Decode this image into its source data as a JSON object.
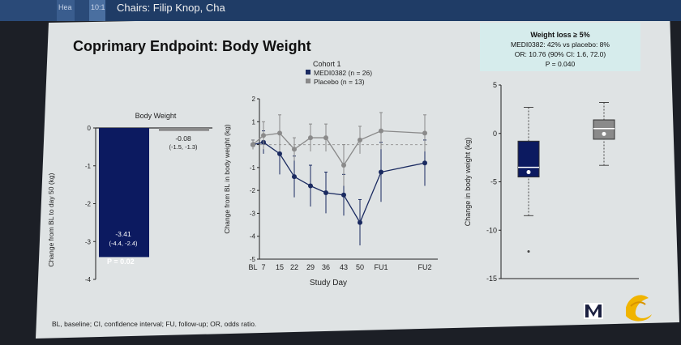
{
  "header": {
    "chairs_text": "Chairs: Filip Knop, Cha",
    "tab_a": "Hea",
    "tab_b": "10:1"
  },
  "slide": {
    "title": "Coprimary Endpoint: Body Weight",
    "footnote": "BL, baseline; CI, confidence interval; FU, follow-up; OR, odds ratio."
  },
  "colors": {
    "medi": "#0c1a60",
    "placebo": "#8a8a8a",
    "annotation_box": "#d6ecec"
  },
  "logos": [
    "medimmune-logo",
    "astrazeneca-logo"
  ],
  "chart_data": [
    {
      "type": "bar",
      "title": "Body Weight",
      "ylabel": "Change from BL to day 50 (kg)",
      "ylim": [
        -4,
        0
      ],
      "yticks": [
        "0",
        "-1",
        "-2",
        "-3",
        "-4"
      ],
      "bars": [
        {
          "value": -3.41,
          "label": "-3.41",
          "ci": "(-4.4, -2.4)",
          "pvalue": "P = 0.02",
          "color": "#0c1a60"
        },
        {
          "value": -0.08,
          "label": "-0.08",
          "ci": "(-1.5, -1.3)",
          "color": "#8a8a8a"
        }
      ]
    },
    {
      "type": "line",
      "legend_title": "Cohort 1",
      "legend": [
        "MEDI0382 (n = 26)",
        "Placebo (n = 13)"
      ],
      "xlabel": "Study Day",
      "ylabel": "Change from BL in body weight (kg)",
      "ylim": [
        -5,
        2
      ],
      "yticks": [
        "2",
        "1",
        "0",
        "-1",
        "-2",
        "-3",
        "-4",
        "-5"
      ],
      "x_ticks": [
        "BL",
        "7",
        "15",
        "22",
        "29",
        "36",
        "43",
        "50",
        "FU1",
        "FU2"
      ],
      "series": [
        {
          "name": "MEDI0382 (n = 26)",
          "color": "#1a2a60",
          "x": [
            "BL",
            "7",
            "15",
            "22",
            "29",
            "36",
            "43",
            "50",
            "FU1",
            "FU2"
          ],
          "y": [
            0,
            0.1,
            -0.4,
            -1.4,
            -1.8,
            -2.1,
            -2.2,
            -3.4,
            -1.2,
            -0.8
          ],
          "err": [
            0.2,
            0.5,
            0.9,
            0.9,
            0.9,
            0.9,
            0.9,
            1.0,
            1.3,
            1.0
          ]
        },
        {
          "name": "Placebo (n = 13)",
          "color": "#8a8a8a",
          "x": [
            "BL",
            "7",
            "15",
            "22",
            "29",
            "36",
            "43",
            "50",
            "FU1",
            "FU2"
          ],
          "y": [
            0,
            0.4,
            0.5,
            -0.2,
            0.3,
            0.3,
            -0.9,
            0.2,
            0.6,
            0.5
          ],
          "err": [
            0.2,
            0.6,
            0.8,
            0.5,
            0.6,
            0.6,
            0.9,
            0.6,
            0.8,
            0.8
          ]
        }
      ]
    },
    {
      "type": "box",
      "ylabel": "Change in body weight (kg)",
      "ylim": [
        -15,
        5
      ],
      "yticks": [
        "5",
        "0",
        "-5",
        "-10",
        "-15"
      ],
      "annotation": {
        "line1": "Weight loss ≥ 5%",
        "line2": "MEDI0382: 42% vs placebo: 8%",
        "line3": "OR: 10.76 (90% CI: 1.6, 72.0)",
        "line4": "P = 0.040"
      },
      "boxes": [
        {
          "name": "MEDI0382",
          "color": "#0c1a60",
          "whisker_low": -8.5,
          "q1": -4.5,
          "median": -3.5,
          "q3": -0.8,
          "whisker_high": 2.7,
          "outliers": [
            -12.2
          ]
        },
        {
          "name": "Placebo",
          "color": "#8a8a8a",
          "whisker_low": -3.3,
          "q1": -0.6,
          "median": 0.5,
          "q3": 1.4,
          "whisker_high": 3.2,
          "outliers": []
        }
      ]
    }
  ]
}
